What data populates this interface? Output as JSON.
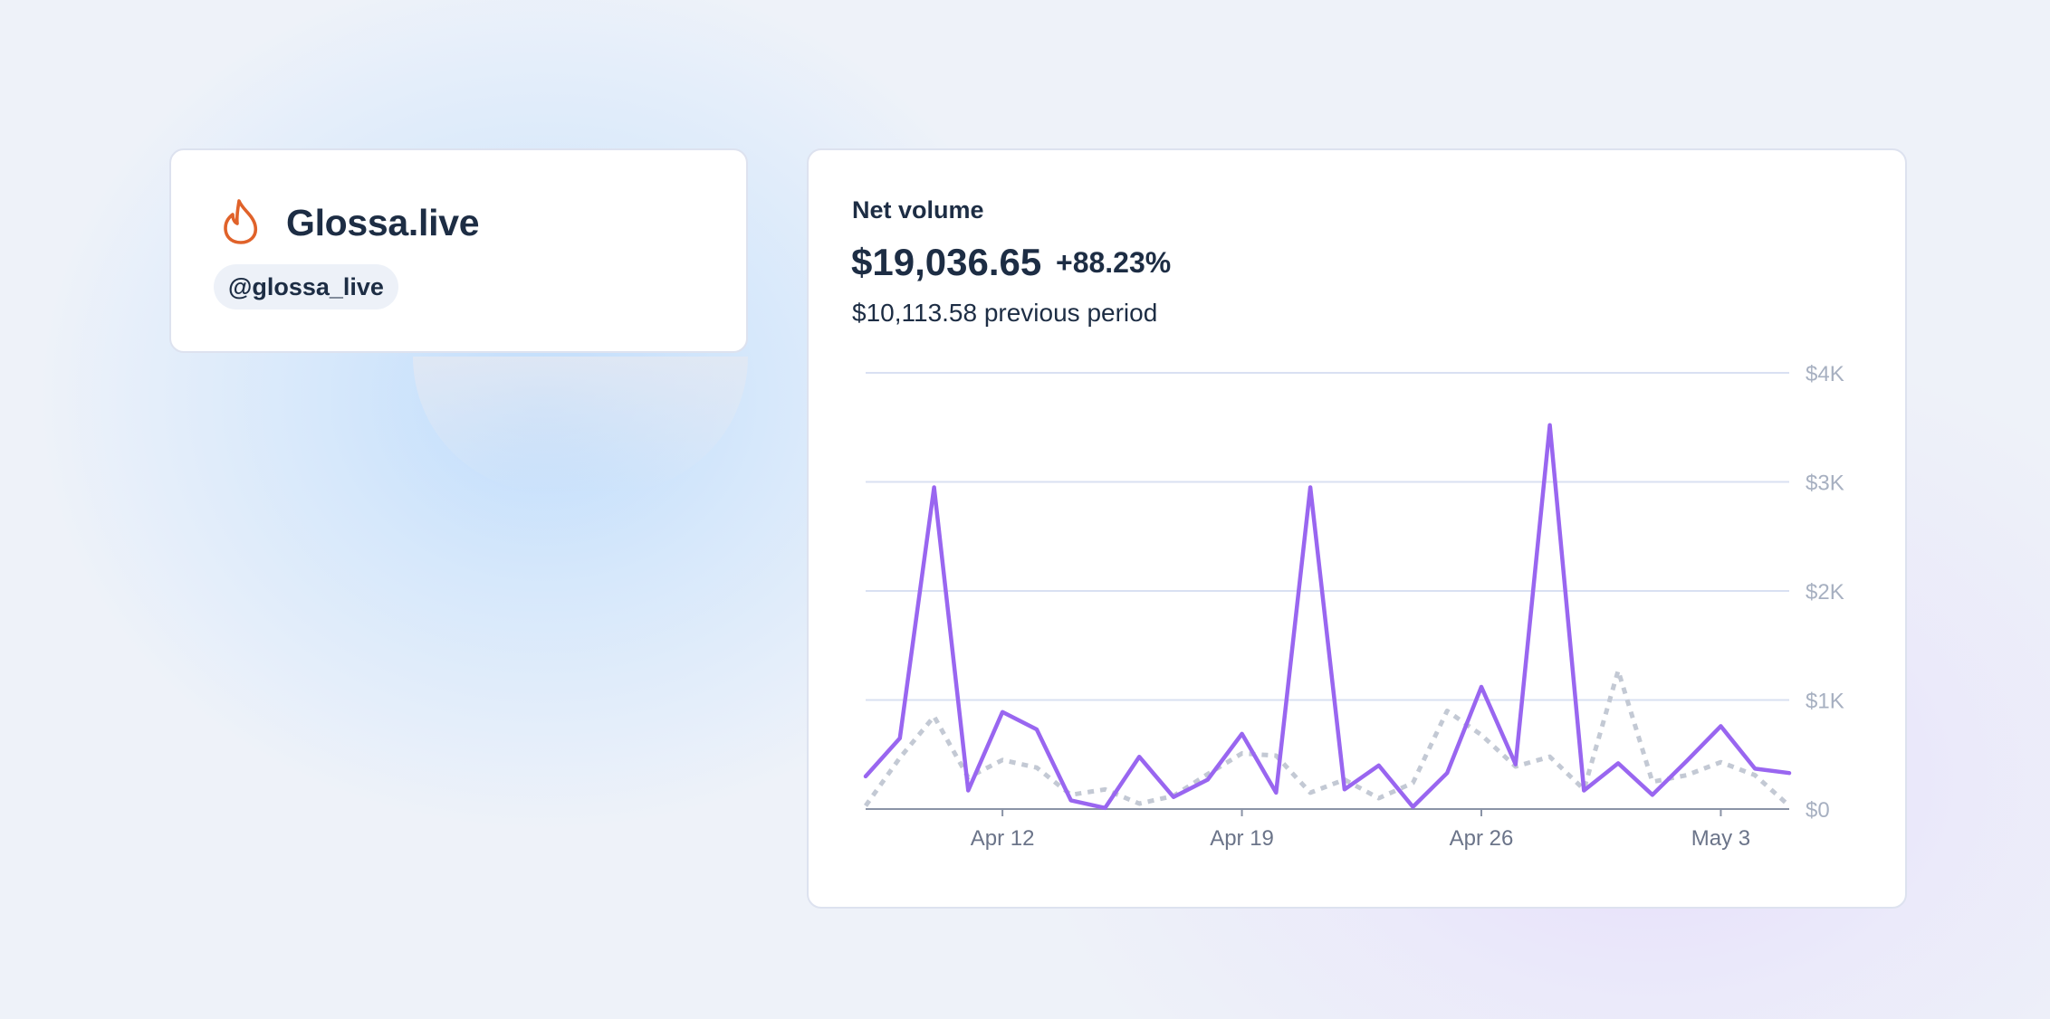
{
  "colors": {
    "brand_icon": "#e0622a",
    "current_series": "#9966f0",
    "previous_series": "#c3c9d4",
    "grid": "#d9e0f2",
    "axis_text": "#a7b0c1",
    "x_tick_text": "#6b7489",
    "text_primary": "#1d2d44"
  },
  "profile": {
    "icon": "flame-icon",
    "name": "Glossa.live",
    "handle": "@glossa_live"
  },
  "metric": {
    "label": "Net volume",
    "value": "$19,036.65",
    "change": "+88.23%",
    "previous": "$10,113.58 previous period"
  },
  "chart_data": {
    "type": "line",
    "title": "",
    "xlabel": "",
    "ylabel": "",
    "ylim": [
      0,
      4000
    ],
    "y_ticks": [
      {
        "value": 0,
        "label": "$0"
      },
      {
        "value": 1000,
        "label": "$1K"
      },
      {
        "value": 2000,
        "label": "$2K"
      },
      {
        "value": 3000,
        "label": "$3K"
      },
      {
        "value": 4000,
        "label": "$4K"
      }
    ],
    "x": [
      "Apr 8",
      "Apr 9",
      "Apr 10",
      "Apr 11",
      "Apr 12",
      "Apr 13",
      "Apr 14",
      "Apr 15",
      "Apr 16",
      "Apr 17",
      "Apr 18",
      "Apr 19",
      "Apr 20",
      "Apr 21",
      "Apr 22",
      "Apr 23",
      "Apr 24",
      "Apr 25",
      "Apr 26",
      "Apr 27",
      "Apr 28",
      "Apr 29",
      "Apr 30",
      "May 1",
      "May 2",
      "May 3",
      "May 4",
      "May 5"
    ],
    "x_ticks": [
      {
        "x": "Apr 12",
        "label": "Apr 12"
      },
      {
        "x": "Apr 19",
        "label": "Apr 19"
      },
      {
        "x": "Apr 26",
        "label": "Apr 26"
      },
      {
        "x": "May 3",
        "label": "May 3"
      }
    ],
    "grid": true,
    "series": [
      {
        "style": "solid",
        "values": [
          300,
          650,
          2950,
          170,
          890,
          730,
          80,
          10,
          480,
          110,
          270,
          690,
          150,
          2950,
          180,
          400,
          20,
          330,
          1120,
          410,
          3520,
          170,
          420,
          130,
          440,
          760,
          370,
          330
        ]
      },
      {
        "style": "dotted",
        "values": [
          30,
          470,
          850,
          290,
          450,
          380,
          130,
          180,
          50,
          120,
          320,
          510,
          490,
          150,
          270,
          100,
          240,
          900,
          680,
          390,
          480,
          180,
          1270,
          250,
          310,
          430,
          310,
          30
        ]
      }
    ]
  }
}
